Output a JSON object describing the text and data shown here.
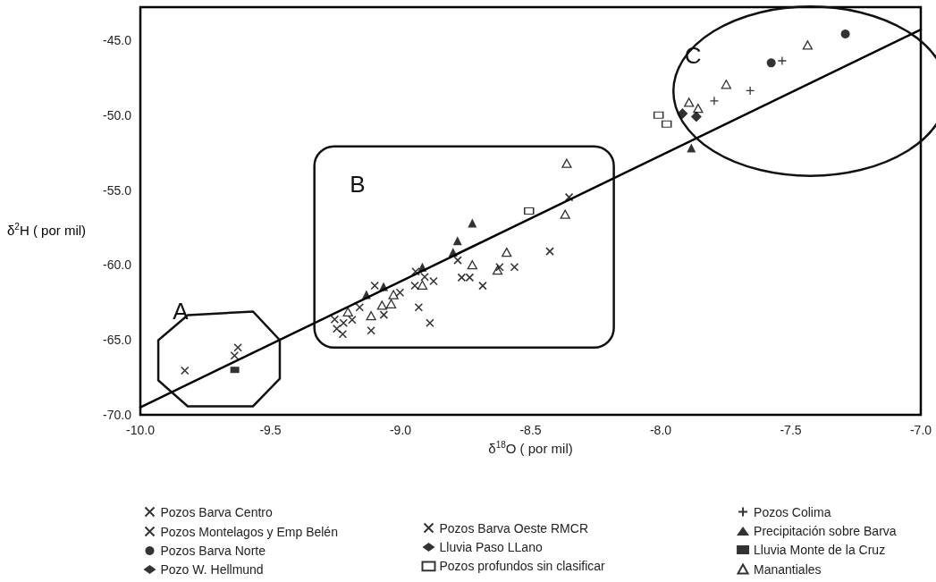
{
  "chart_data": {
    "type": "scatter",
    "xlabel": "δ$^{18}$O ( por mil)",
    "ylabel": "δ$^{2}$H ( por mil)",
    "xlim": [
      -10,
      -7
    ],
    "ylim": [
      -70,
      -42.8
    ],
    "xticks": [
      {
        "value": -10,
        "label": "-10.0"
      },
      {
        "value": -9.5,
        "label": "-9.5"
      },
      {
        "value": -9,
        "label": "-9.0"
      },
      {
        "value": -8.5,
        "label": "-8.5"
      },
      {
        "value": -8,
        "label": "-8.0"
      },
      {
        "value": -7.5,
        "label": "-7.5"
      },
      {
        "value": -7,
        "label": "-7.0"
      }
    ],
    "yticks": [
      {
        "value": -70,
        "label": "-70.0"
      },
      {
        "value": -65,
        "label": "-65.0"
      },
      {
        "value": -60,
        "label": "-60.0"
      },
      {
        "value": -55,
        "label": "-55.0"
      },
      {
        "value": -50,
        "label": "-50.0"
      },
      {
        "value": -45,
        "label": "-45.0"
      }
    ],
    "grid": false,
    "legend": "bottom",
    "annotations": [
      "A",
      "B",
      "C"
    ],
    "series": [
      {
        "name": "Pozos Barva Centro",
        "color": "#000000",
        "marker": "x",
        "x": [
          -9.253,
          -9.245,
          -9.222,
          -9.219,
          -9.186
        ],
        "values": [
          -63.63,
          -64.26,
          -64.62,
          -63.87,
          -63.66
        ]
      },
      {
        "name": "Pozos Montelagos y Emp Belén",
        "color": "#000000",
        "marker": "x",
        "x": [
          -9.829,
          -9.625,
          -9.638
        ],
        "values": [
          -67.05,
          -65.51,
          -66.05
        ]
      },
      {
        "name": "Pozos Barva Norte",
        "color": "#000000",
        "marker": "circle",
        "x": [
          -7.29,
          -7.575
        ],
        "values": [
          -44.59,
          -46.52
        ]
      },
      {
        "name": "Pozo W. Hellmund",
        "color": "#000000",
        "marker": "diamond",
        "x": [
          -7.916
        ],
        "values": [
          -49.9
        ]
      },
      {
        "name": "Pozos Barva Oeste RMCR",
        "color": "#000000",
        "marker": "x",
        "x": [
          -8.352,
          -8.426,
          -8.562,
          -8.619,
          -8.684,
          -8.765,
          -8.734,
          -8.78,
          -8.873,
          -8.907,
          -8.945,
          -8.942,
          -8.93,
          -8.887,
          -9.002,
          -9.099,
          -9.064,
          -9.113,
          -9.157
        ],
        "values": [
          -55.48,
          -59.09,
          -60.14,
          -60.14,
          -61.39,
          -60.84,
          -60.84,
          -59.69,
          -61.08,
          -60.8,
          -61.38,
          -60.44,
          -62.83,
          -63.87,
          -61.84,
          -61.38,
          -63.33,
          -64.38,
          -62.83
        ]
      },
      {
        "name": "Lluvia Paso LLano",
        "color": "#000000",
        "marker": "diamond",
        "x": [
          -7.863
        ],
        "values": [
          -50.1
        ]
      },
      {
        "name": "Pozos profundos sin clasificar",
        "color": "#000000",
        "marker": "square-open",
        "x": [
          -8.506,
          -8.008,
          -7.977
        ],
        "values": [
          -56.4,
          -50.0,
          -50.6
        ]
      },
      {
        "name": "Pozos Colima",
        "color": "#000000",
        "marker": "cross",
        "x": [
          -7.533,
          -7.656,
          -7.794
        ],
        "values": [
          -46.38,
          -48.37,
          -49.05
        ]
      },
      {
        "name": "Precipitación sobre Barva",
        "color": "#000000",
        "marker": "triangle",
        "x": [
          -8.724,
          -8.781,
          -8.798,
          -8.916,
          -9.065,
          -9.131,
          -7.882
        ],
        "values": [
          -57.2,
          -58.38,
          -59.15,
          -60.14,
          -61.44,
          -61.98,
          -52.19
        ]
      },
      {
        "name": "Lluvia Monte de la Cruz",
        "color": "#000000",
        "marker": "square",
        "x": [
          -9.637
        ],
        "values": [
          -67.0
        ]
      },
      {
        "name": "Manantiales",
        "color": "#000000",
        "marker": "triangle-open",
        "x": [
          -8.361,
          -8.367,
          -8.592,
          -8.724,
          -8.627,
          -8.916,
          -9.027,
          -9.071,
          -9.036,
          -9.113,
          -9.202,
          -7.435,
          -7.748,
          -7.891,
          -7.856
        ],
        "values": [
          -53.22,
          -56.62,
          -59.15,
          -59.99,
          -60.35,
          -61.34,
          -61.98,
          -62.69,
          -62.59,
          -63.39,
          -63.13,
          -45.33,
          -47.95,
          -49.15,
          -49.55
        ]
      },
      {
        "type": "line",
        "color": "#000000",
        "marker": "none",
        "x": [
          -10,
          -7
        ],
        "values": [
          -69.5,
          -44.3
        ]
      }
    ]
  }
}
